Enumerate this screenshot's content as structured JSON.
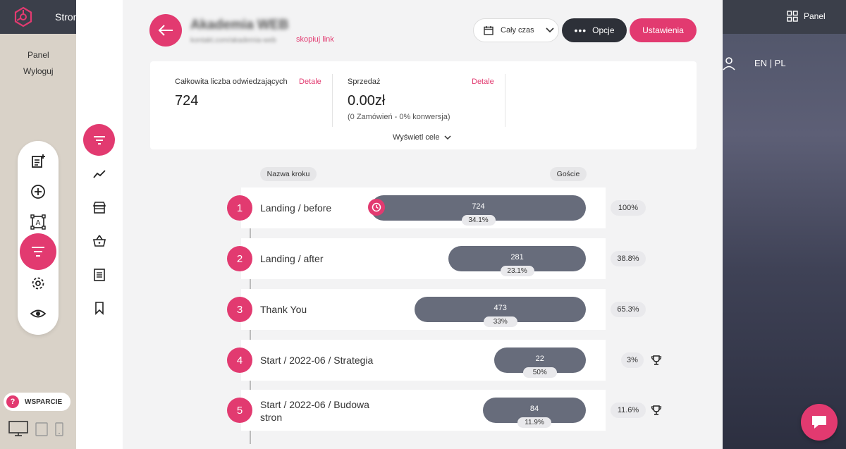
{
  "topbar": {
    "left_label": "Stron",
    "right_label": "Panel"
  },
  "left_menu": {
    "panel": "Panel",
    "logout": "Wyloguj"
  },
  "support": {
    "label": "WSPARCIE",
    "icon": "?"
  },
  "lang": "EN | PL",
  "site": {
    "title": "Akademia WEB",
    "url": "kontakt.com/akademia-web",
    "copy_link": "skopiuj link"
  },
  "toolbar": {
    "date_range": "Cały czas",
    "options": "Opcje",
    "settings": "Ustawienia"
  },
  "stats": {
    "visitors": {
      "label": "Całkowita liczba odwiedzających",
      "detail": "Detale",
      "value": "724"
    },
    "sales": {
      "label": "Sprzedaż",
      "detail": "Detale",
      "value": "0.00zł",
      "sub": "(0 Zamówień - 0% konwersja)"
    },
    "show_goals": "Wyświetl cele"
  },
  "columns": {
    "step": "Nazwa kroku",
    "guests": "Goście"
  },
  "steps": [
    {
      "num": "1",
      "name": "Landing / before",
      "value": "724",
      "badge": "34.1%",
      "pct": "100%",
      "fill": 1.0
    },
    {
      "num": "2",
      "name": "Landing / after",
      "value": "281",
      "badge": "23.1%",
      "pct": "38.8%",
      "fill": 0.388
    },
    {
      "num": "3",
      "name": "Thank You",
      "value": "473",
      "badge": "33%",
      "pct": "65.3%",
      "fill": 0.653
    },
    {
      "num": "4",
      "name": "Start / 2022-06 / Strategia",
      "value": "22",
      "badge": "50%",
      "pct": "3%",
      "fill": 0.03
    },
    {
      "num": "5",
      "name": "Start / 2022-06 / Budowa stron",
      "value": "84",
      "badge": "11.9%",
      "pct": "11.6%",
      "fill": 0.116
    }
  ],
  "colors": {
    "accent": "#e23a70",
    "dark": "#2d3038",
    "bar": "#676c7b"
  }
}
